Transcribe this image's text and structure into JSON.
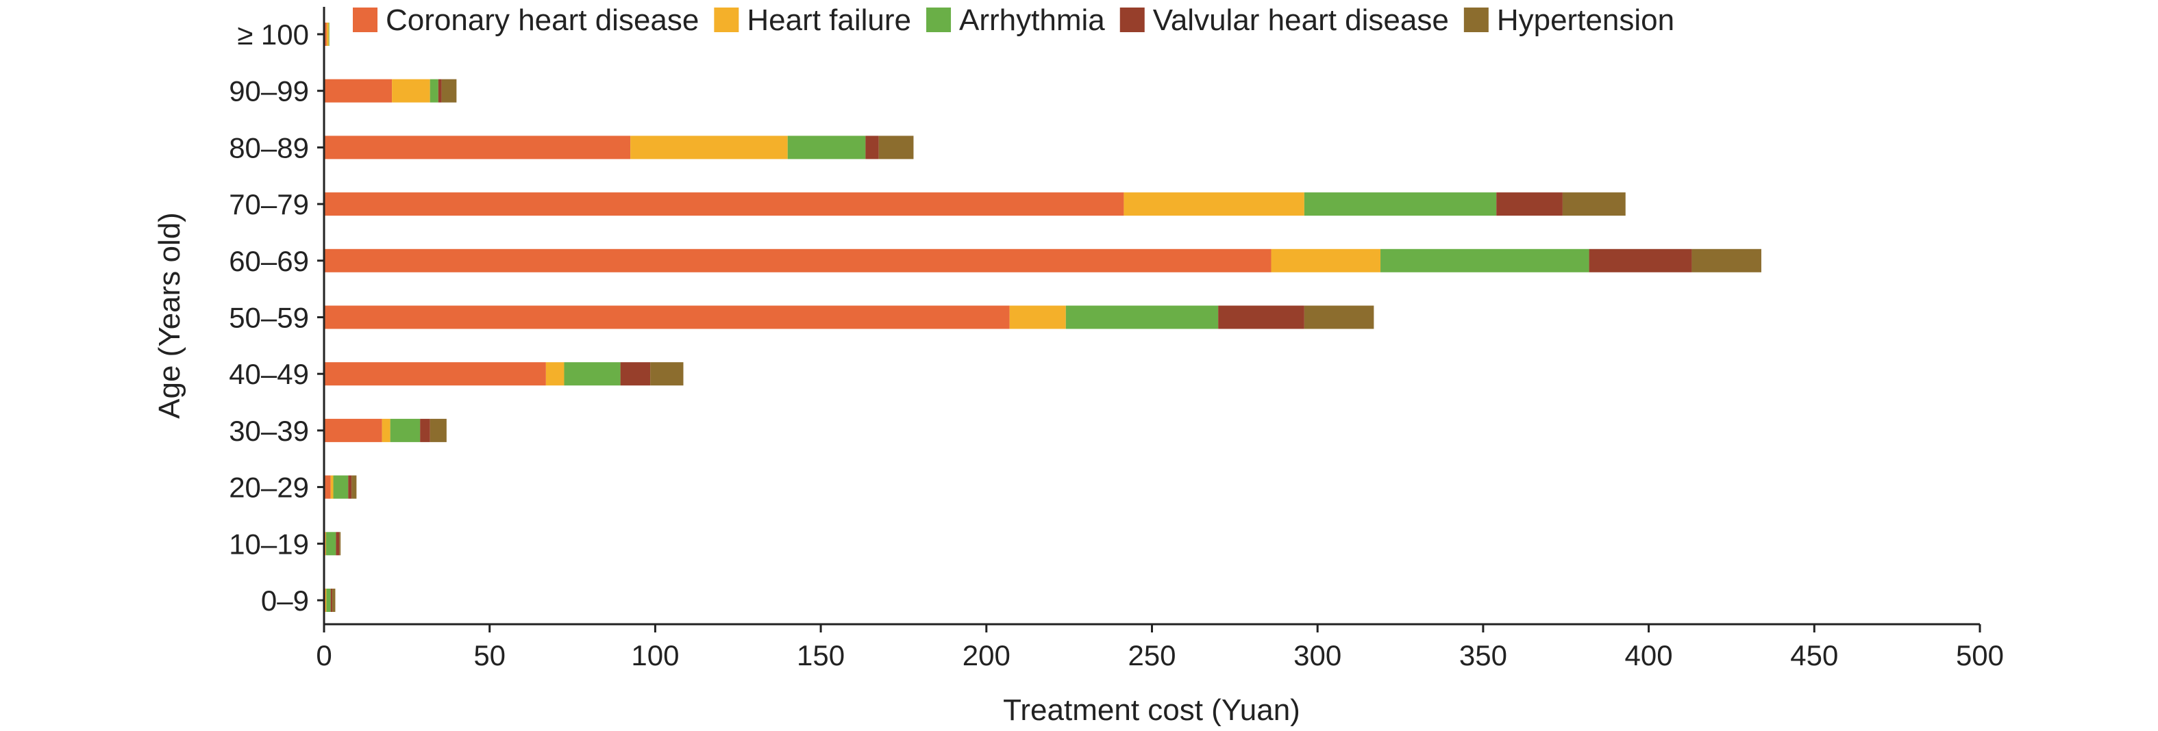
{
  "chart_data": {
    "type": "bar",
    "orientation": "horizontal",
    "stacked": true,
    "title": "",
    "xlabel": "Treatment cost (Yuan)",
    "ylabel": "Age (Years old)",
    "xlim": [
      0,
      500
    ],
    "xticks": [
      0,
      50,
      100,
      150,
      200,
      250,
      300,
      350,
      400,
      450,
      500
    ],
    "xtick_labels": [
      "0",
      "50",
      "100",
      "150",
      "200",
      "250",
      "300",
      "350",
      "400",
      "450",
      "500"
    ],
    "grid": false,
    "legend_position": "top",
    "categories": [
      "≥ 100",
      "90–99",
      "80–89",
      "70–79",
      "60–69",
      "50–59",
      "40–49",
      "30–39",
      "20–29",
      "10–19",
      "0–9"
    ],
    "series": [
      {
        "name": "Coronary heart disease",
        "color": "#E8693A",
        "values": [
          0.8,
          20.5,
          92.5,
          241.5,
          286,
          207,
          67,
          17.5,
          2,
          0.4,
          0.4
        ]
      },
      {
        "name": "Heart failure",
        "color": "#F4B02A",
        "values": [
          0.6,
          11.5,
          47.5,
          54.5,
          33,
          17,
          5.5,
          2.5,
          0.8,
          0.2,
          0.3
        ]
      },
      {
        "name": "Arrhythmia",
        "color": "#6AAF47",
        "values": [
          0.2,
          2.5,
          23.5,
          58,
          63,
          46,
          17,
          9,
          4.5,
          3,
          1.3
        ]
      },
      {
        "name": "Valvular heart disease",
        "color": "#973F2B",
        "values": [
          0,
          1,
          4,
          20,
          31,
          26,
          9,
          3,
          1,
          1,
          0.5
        ]
      },
      {
        "name": "Hypertension",
        "color": "#8C6D2E",
        "values": [
          0,
          4.5,
          10.5,
          19,
          21,
          21,
          10,
          5,
          1.5,
          0.4,
          0.9
        ]
      }
    ]
  }
}
